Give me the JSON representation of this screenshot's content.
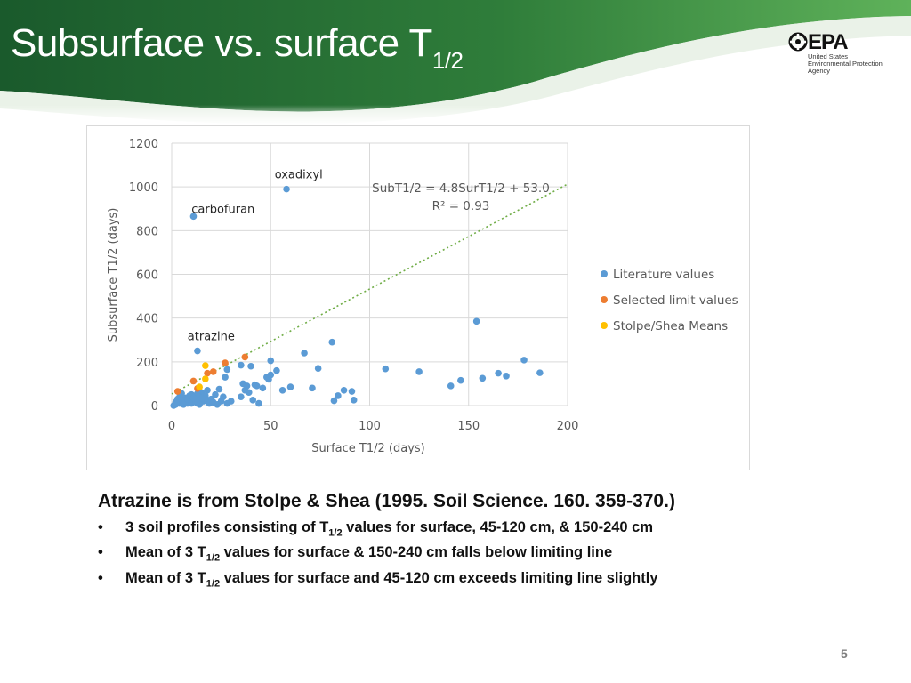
{
  "slide": {
    "title_main": "Subsurface vs. surface T",
    "title_sub": "1/2",
    "page_number": "5"
  },
  "logo": {
    "word": "EPA",
    "agency_lines": [
      "United States",
      "Environmental Protection",
      "Agency"
    ]
  },
  "colors": {
    "header_green_dark": "#1f5e2f",
    "header_green_light": "#4fa352",
    "literature": "#5b9bd5",
    "selected_limit": "#ed7d31",
    "stolpe_shea": "#ffc000",
    "trendline": "#70ad47"
  },
  "chart_data": {
    "type": "scatter",
    "xlabel": "Surface T1/2 (days)",
    "ylabel": "Subsurface T1/2 (days)",
    "xlim": [
      0,
      200
    ],
    "ylim": [
      0,
      1200
    ],
    "x_ticks": [
      0,
      50,
      100,
      150,
      200
    ],
    "y_ticks": [
      0,
      200,
      400,
      600,
      800,
      1000,
      1200
    ],
    "x_tick_labels": [
      "0",
      "50",
      "100",
      "150",
      "200"
    ],
    "y_tick_labels": [
      "0",
      "200",
      "400",
      "600",
      "800",
      "1000",
      "1200"
    ],
    "grid": "vertical and horizontal major gridlines",
    "legend_position": "right",
    "trendline": {
      "slope": 4.8,
      "intercept": 53.0,
      "x_range": [
        0,
        200
      ],
      "equation": "SubT1/2 = 4.8SurT1/2 + 53.0",
      "r_squared": "R² = 0.93"
    },
    "annotations": [
      {
        "text": "oxadixyl",
        "x": 52,
        "y": 1040
      },
      {
        "text": "carbofuran",
        "x": 10,
        "y": 880
      },
      {
        "text": "atrazine",
        "x": 8,
        "y": 300
      }
    ],
    "series": [
      {
        "name": "Literature values",
        "color": "#5b9bd5",
        "points": [
          [
            58,
            990
          ],
          [
            11,
            865
          ],
          [
            154,
            385
          ],
          [
            81,
            290
          ],
          [
            13,
            250
          ],
          [
            67,
            240
          ],
          [
            178,
            208
          ],
          [
            50,
            205
          ],
          [
            35,
            185
          ],
          [
            40,
            180
          ],
          [
            74,
            170
          ],
          [
            186,
            150
          ],
          [
            108,
            168
          ],
          [
            125,
            155
          ],
          [
            53,
            160
          ],
          [
            165,
            148
          ],
          [
            169,
            135
          ],
          [
            157,
            125
          ],
          [
            146,
            115
          ],
          [
            141,
            90
          ],
          [
            60,
            85
          ],
          [
            71,
            80
          ],
          [
            56,
            70
          ],
          [
            87,
            70
          ],
          [
            91,
            65
          ],
          [
            84,
            45
          ],
          [
            92,
            25
          ],
          [
            82,
            22
          ],
          [
            48,
            130
          ],
          [
            49,
            120
          ],
          [
            50,
            140
          ],
          [
            42,
            95
          ],
          [
            43,
            90
          ],
          [
            36,
            100
          ],
          [
            38,
            90
          ],
          [
            46,
            80
          ],
          [
            27,
            130
          ],
          [
            28,
            165
          ],
          [
            24,
            75
          ],
          [
            41,
            25
          ],
          [
            35,
            40
          ],
          [
            37,
            70
          ],
          [
            39,
            60
          ],
          [
            30,
            20
          ],
          [
            28,
            10
          ],
          [
            44,
            10
          ],
          [
            22,
            50
          ],
          [
            20,
            30
          ],
          [
            18,
            70
          ],
          [
            17,
            45
          ],
          [
            16,
            20
          ],
          [
            15,
            60
          ],
          [
            14,
            30
          ],
          [
            13,
            10
          ],
          [
            12,
            40
          ],
          [
            11,
            20
          ],
          [
            10,
            50
          ],
          [
            9,
            25
          ],
          [
            8,
            10
          ],
          [
            7,
            35
          ],
          [
            6,
            15
          ],
          [
            5,
            25
          ],
          [
            4,
            10
          ],
          [
            3,
            20
          ],
          [
            2,
            5
          ],
          [
            1,
            0
          ],
          [
            2,
            15
          ],
          [
            3,
            30
          ],
          [
            4,
            40
          ],
          [
            6,
            5
          ],
          [
            8,
            30
          ],
          [
            10,
            10
          ],
          [
            12,
            20
          ],
          [
            14,
            5
          ],
          [
            16,
            45
          ],
          [
            18,
            25
          ],
          [
            19,
            10
          ],
          [
            21,
            15
          ],
          [
            23,
            5
          ],
          [
            25,
            20
          ],
          [
            26,
            40
          ],
          [
            15,
            35
          ],
          [
            9,
            45
          ],
          [
            5,
            55
          ],
          [
            13,
            55
          ],
          [
            11,
            35
          ]
        ]
      },
      {
        "name": "Selected limit values",
        "color": "#ed7d31",
        "points": [
          [
            27,
            195
          ],
          [
            37,
            222
          ],
          [
            21,
            155
          ],
          [
            18,
            148
          ],
          [
            11,
            112
          ],
          [
            13,
            78
          ],
          [
            3,
            65
          ]
        ]
      },
      {
        "name": "Stolpe/Shea Means",
        "color": "#ffc000",
        "points": [
          [
            17,
            183
          ],
          [
            17,
            122
          ],
          [
            14,
            85
          ]
        ]
      }
    ]
  },
  "notes": {
    "heading": "Atrazine is from Stolpe & Shea (1995. Soil Science. 160. 359-370.)",
    "bullet_char": "•",
    "bullets": [
      {
        "pre": "3 soil profiles consisting of T",
        "sub": "1/2",
        "post": " values for surface, 45-120 cm, & 150-240 cm"
      },
      {
        "pre": "Mean of 3 T",
        "sub": "1/2",
        "post": " values for surface & 150-240 cm falls below limiting line"
      },
      {
        "pre": "Mean of 3 T",
        "sub": "1/2",
        "post": " values for surface and 45-120 cm exceeds limiting line slightly"
      }
    ]
  }
}
